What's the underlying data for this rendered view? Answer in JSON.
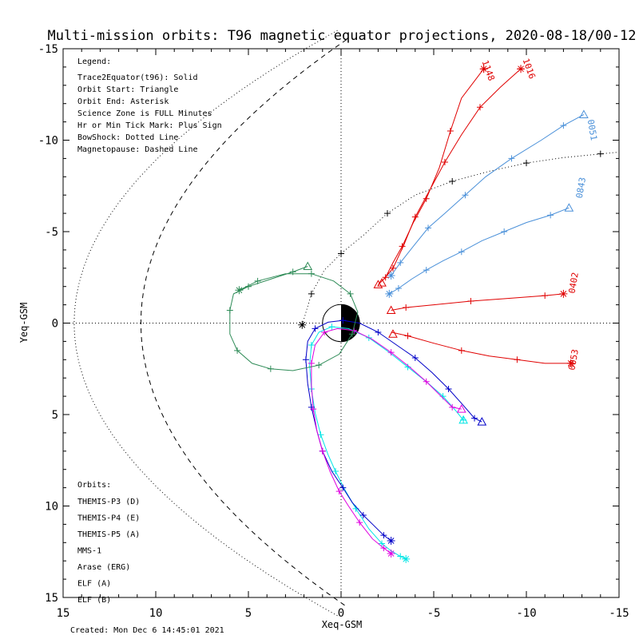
{
  "chart_data": {
    "type": "line",
    "title": "Multi-mission orbits: T96 magnetic equator projections, 2020-08-18/00-12",
    "xlabel": "Xeq-GSM",
    "ylabel": "Yeq-GSM",
    "xlim": [
      15,
      -15
    ],
    "ylim": [
      15,
      -15
    ],
    "xticks": [
      15,
      10,
      5,
      0,
      -5,
      -10,
      -15
    ],
    "xtick_labels": [
      "15",
      "10",
      "5",
      "0",
      "-5",
      "-10",
      "-15"
    ],
    "yticks": [
      -15,
      -10,
      -5,
      0,
      5,
      10,
      15
    ],
    "ytick_labels": [
      "-15",
      "-10",
      "-5",
      "0",
      "5",
      "10",
      "15"
    ],
    "created": "Created: Mon Dec  6 14:45:01 2021",
    "legend_title": "Legend:",
    "legend_lines": [
      "Trace2Equator(t96): Solid",
      "Orbit Start: Triangle",
      "Orbit End: Asterisk",
      "Science Zone is FULL Minutes",
      "Hr or Min Tick Mark: Plus Sign",
      "BowShock: Dotted Line",
      "Magnetopause: Dashed Line"
    ],
    "orbits_title": "Orbits:",
    "series": [
      {
        "name": "THEMIS-P3 (D)",
        "color": "#00e5e5",
        "points": [
          [
            -3.5,
            12.9
          ],
          [
            -3.2,
            12.75
          ],
          [
            -2.7,
            12.45
          ],
          [
            -2.2,
            12.05
          ],
          [
            -1.5,
            11.25
          ],
          [
            -0.8,
            10.15
          ],
          [
            -0.2,
            9.1
          ],
          [
            0.3,
            8.1
          ],
          [
            0.7,
            7.2
          ],
          [
            1.1,
            6.1
          ],
          [
            1.4,
            4.9
          ],
          [
            1.6,
            3.6
          ],
          [
            1.7,
            2.3
          ],
          [
            1.6,
            1.2
          ],
          [
            1.2,
            0.5
          ],
          [
            0.5,
            0.2
          ],
          [
            -0.4,
            0.3
          ],
          [
            -1.5,
            0.8
          ],
          [
            -2.6,
            1.6
          ],
          [
            -3.6,
            2.4
          ],
          [
            -4.6,
            3.2
          ],
          [
            -5.5,
            4.0
          ],
          [
            -6.2,
            4.8
          ],
          [
            -6.6,
            5.3
          ]
        ],
        "start": [
          -6.6,
          5.3
        ],
        "end": [
          -3.5,
          12.9
        ]
      },
      {
        "name": "THEMIS-P4 (E)",
        "color": "#0000c8",
        "points": [
          [
            -2.7,
            11.9
          ],
          [
            -2.3,
            11.6
          ],
          [
            -1.8,
            11.1
          ],
          [
            -1.2,
            10.5
          ],
          [
            -0.6,
            9.8
          ],
          [
            -0.1,
            9.0
          ],
          [
            0.5,
            8.1
          ],
          [
            1.0,
            7.0
          ],
          [
            1.3,
            5.9
          ],
          [
            1.6,
            4.6
          ],
          [
            1.8,
            3.3
          ],
          [
            1.9,
            2.0
          ],
          [
            1.8,
            1.0
          ],
          [
            1.4,
            0.3
          ],
          [
            0.7,
            -0.05
          ],
          [
            -0.1,
            -0.15
          ],
          [
            -1.0,
            0.0
          ],
          [
            -2.0,
            0.5
          ],
          [
            -3.0,
            1.2
          ],
          [
            -4.0,
            1.9
          ],
          [
            -4.9,
            2.7
          ],
          [
            -5.8,
            3.6
          ],
          [
            -6.6,
            4.5
          ],
          [
            -7.2,
            5.2
          ],
          [
            -7.6,
            5.4
          ]
        ],
        "start": [
          -7.6,
          5.4
        ],
        "end": [
          -2.7,
          11.9
        ]
      },
      {
        "name": "THEMIS-P5 (A)",
        "color": "#e000e0",
        "points": [
          [
            -2.7,
            12.6
          ],
          [
            -2.3,
            12.3
          ],
          [
            -1.7,
            11.8
          ],
          [
            -1.0,
            10.9
          ],
          [
            -0.4,
            10.0
          ],
          [
            0.1,
            9.2
          ],
          [
            0.6,
            8.1
          ],
          [
            1.0,
            7.0
          ],
          [
            1.3,
            5.9
          ],
          [
            1.5,
            4.7
          ],
          [
            1.6,
            3.4
          ],
          [
            1.6,
            2.2
          ],
          [
            1.4,
            1.2
          ],
          [
            0.9,
            0.5
          ],
          [
            0.2,
            0.3
          ],
          [
            -0.7,
            0.4
          ],
          [
            -1.7,
            0.9
          ],
          [
            -2.7,
            1.6
          ],
          [
            -3.7,
            2.4
          ],
          [
            -4.6,
            3.2
          ],
          [
            -5.4,
            4.0
          ],
          [
            -6.0,
            4.6
          ],
          [
            -6.5,
            4.7
          ]
        ],
        "start": [
          -6.5,
          4.7
        ],
        "end": [
          -2.7,
          12.6
        ]
      },
      {
        "name": "MMS-1",
        "color": "#000000",
        "points": [
          [
            2.1,
            0.1
          ],
          [
            1.6,
            -1.6
          ],
          [
            0.9,
            -2.9
          ],
          [
            0.0,
            -3.8
          ],
          [
            -1.2,
            -4.8
          ],
          [
            -2.5,
            -6.0
          ],
          [
            -4.0,
            -7.0
          ],
          [
            -6.0,
            -7.75
          ],
          [
            -8.0,
            -8.3
          ],
          [
            -10.0,
            -8.75
          ],
          [
            -12.0,
            -9.05
          ],
          [
            -14.0,
            -9.25
          ],
          [
            -15.0,
            -9.35
          ]
        ],
        "start": null,
        "end": [
          2.1,
          0.1
        ]
      },
      {
        "name": "Arase (ERG)",
        "color": "#2e8b57",
        "points": [
          [
            1.8,
            -3.1
          ],
          [
            2.6,
            -2.8
          ],
          [
            3.8,
            -2.4
          ],
          [
            5.0,
            -2.0
          ],
          [
            5.8,
            -1.6
          ],
          [
            6.0,
            -0.7
          ],
          [
            6.0,
            0.6
          ],
          [
            5.6,
            1.5
          ],
          [
            4.8,
            2.2
          ],
          [
            3.8,
            2.5
          ],
          [
            2.6,
            2.6
          ],
          [
            1.2,
            2.3
          ],
          [
            0.1,
            1.7
          ],
          [
            -0.6,
            0.6
          ],
          [
            -0.9,
            -0.6
          ],
          [
            -0.5,
            -1.6
          ],
          [
            0.4,
            -2.3
          ],
          [
            1.6,
            -2.7
          ],
          [
            3.0,
            -2.7
          ],
          [
            4.5,
            -2.3
          ],
          [
            5.5,
            -1.8
          ]
        ],
        "start": [
          1.8,
          -3.1
        ],
        "end": [
          5.5,
          -1.8
        ]
      },
      {
        "name": "ELF (A)",
        "color": "#4a90d9",
        "points": [
          [
            -2.6,
            -1.6
          ],
          [
            -3.1,
            -1.9
          ],
          [
            -3.8,
            -2.4
          ],
          [
            -4.6,
            -2.9
          ],
          [
            -5.5,
            -3.4
          ],
          [
            -6.5,
            -3.9
          ],
          [
            -7.6,
            -4.5
          ],
          [
            -8.8,
            -5.0
          ],
          [
            -10.0,
            -5.5
          ],
          [
            -11.3,
            -5.9
          ],
          [
            -12.3,
            -6.3
          ]
        ],
        "start": [
          -12.3,
          -6.3
        ],
        "end": [
          -2.6,
          -1.6
        ],
        "label": "0843",
        "extra_tracks": [
          {
            "label": "0051",
            "points": [
              [
                -2.7,
                -2.6
              ],
              [
                -3.2,
                -3.3
              ],
              [
                -3.9,
                -4.2
              ],
              [
                -4.7,
                -5.2
              ],
              [
                -5.6,
                -6.0
              ],
              [
                -6.7,
                -7.0
              ],
              [
                -7.8,
                -8.0
              ],
              [
                -9.2,
                -9.0
              ],
              [
                -10.8,
                -10.0
              ],
              [
                -12.0,
                -10.8
              ],
              [
                -13.1,
                -11.4
              ]
            ],
            "start": [
              -13.1,
              -11.4
            ],
            "end": [
              -2.7,
              -2.6
            ]
          }
        ]
      },
      {
        "name": "ELF (B)",
        "color": "#e00000",
        "points": [
          [
            -2.7,
            -0.7
          ],
          [
            -3.5,
            -0.85
          ],
          [
            -5.0,
            -1.0
          ],
          [
            -7.0,
            -1.2
          ],
          [
            -9.0,
            -1.35
          ],
          [
            -11.0,
            -1.5
          ],
          [
            -12.0,
            -1.6
          ]
        ],
        "start": [
          -2.7,
          -0.7
        ],
        "end": [
          -12.0,
          -1.6
        ],
        "label": "0402",
        "extra_tracks": [
          {
            "label": "0053",
            "points": [
              [
                -2.7,
                0.5
              ],
              [
                -3.6,
                0.7
              ],
              [
                -5.0,
                1.1
              ],
              [
                -6.5,
                1.5
              ],
              [
                -8.0,
                1.8
              ],
              [
                -9.5,
                2.0
              ],
              [
                -11.0,
                2.2
              ],
              [
                -12.4,
                2.2
              ]
            ],
            "start": [
              -2.8,
              0.6
            ],
            "end": [
              -12.4,
              2.2
            ]
          },
          {
            "label": "1148",
            "points": [
              [
                -2.0,
                -2.1
              ],
              [
                -2.4,
                -2.5
              ],
              [
                -2.8,
                -3.3
              ],
              [
                -3.3,
                -4.2
              ],
              [
                -3.9,
                -5.5
              ],
              [
                -4.6,
                -6.8
              ],
              [
                -5.3,
                -8.5
              ],
              [
                -5.9,
                -10.5
              ],
              [
                -6.5,
                -12.3
              ],
              [
                -7.7,
                -13.9
              ]
            ],
            "start": [
              -2.0,
              -2.1
            ],
            "end": [
              -7.7,
              -13.9
            ]
          },
          {
            "label": "1016",
            "points": [
              [
                -2.3,
                -2.4
              ],
              [
                -2.8,
                -3.0
              ],
              [
                -3.4,
                -4.3
              ],
              [
                -4.0,
                -5.8
              ],
              [
                -4.8,
                -7.3
              ],
              [
                -5.6,
                -8.8
              ],
              [
                -6.5,
                -10.3
              ],
              [
                -7.5,
                -11.8
              ],
              [
                -8.6,
                -12.9
              ],
              [
                -9.7,
                -13.9
              ]
            ],
            "start": [
              -2.2,
              -2.2
            ],
            "end": [
              -9.7,
              -13.9
            ]
          }
        ]
      }
    ],
    "reference_curves": [
      {
        "name": "BowShock",
        "style": "dotted"
      },
      {
        "name": "Magnetopause",
        "style": "dashed"
      }
    ]
  }
}
